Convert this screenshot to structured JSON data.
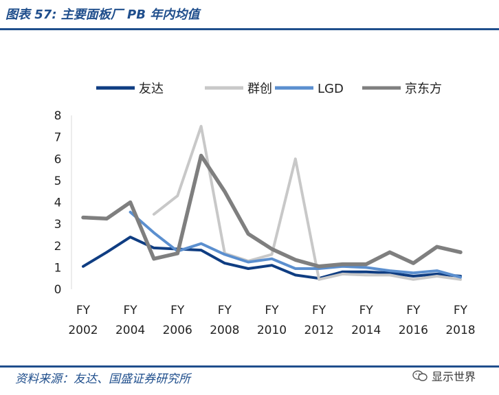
{
  "header": {
    "figure_title": "图表 57: 主要面板厂 PB 年内均值"
  },
  "footer": {
    "source": "资料来源：友达、国盛证券研究所"
  },
  "watermark": {
    "text": "显示世界",
    "icon": "wechat-icon"
  },
  "colors": {
    "accent": "#1f4e8c",
    "auo": "#0f3d82",
    "innolux": "#c8c8c8",
    "lgd": "#5b8fcf",
    "boe": "#7f7f7f"
  },
  "chart_data": {
    "type": "line",
    "title": "",
    "xlabel": "",
    "ylabel": "",
    "ylim": [
      0,
      8
    ],
    "yticks": [
      "0",
      "1",
      "2",
      "3",
      "4",
      "5",
      "6",
      "7",
      "8"
    ],
    "xlim": [
      2002,
      2018
    ],
    "xtick_labels": [
      {
        "top": "FY",
        "bottom": "2002"
      },
      {
        "top": "FY",
        "bottom": "2004"
      },
      {
        "top": "FY",
        "bottom": "2006"
      },
      {
        "top": "FY",
        "bottom": "2008"
      },
      {
        "top": "FY",
        "bottom": "2010"
      },
      {
        "top": "FY",
        "bottom": "2012"
      },
      {
        "top": "FY",
        "bottom": "2014"
      },
      {
        "top": "FY",
        "bottom": "2016"
      },
      {
        "top": "FY",
        "bottom": "2018"
      }
    ],
    "legend_position": "top",
    "series": [
      {
        "name": "友达",
        "color": "#0f3d82",
        "x": [
          2002,
          2003,
          2004,
          2005,
          2006,
          2007,
          2008,
          2009,
          2010,
          2011,
          2012,
          2013,
          2014,
          2015,
          2016,
          2017,
          2018
        ],
        "values": [
          1.05,
          1.7,
          2.4,
          1.9,
          1.85,
          1.8,
          1.2,
          0.95,
          1.1,
          0.65,
          0.5,
          0.8,
          0.8,
          0.75,
          0.6,
          0.7,
          0.6
        ]
      },
      {
        "name": "群创",
        "color": "#c8c8c8",
        "x": [
          2005,
          2006,
          2007,
          2008,
          2009,
          2010,
          2011,
          2012,
          2013,
          2014,
          2015,
          2016,
          2017,
          2018
        ],
        "values": [
          3.45,
          4.3,
          7.5,
          1.65,
          1.3,
          1.6,
          6.0,
          0.45,
          0.7,
          0.65,
          0.65,
          0.45,
          0.6,
          0.45
        ]
      },
      {
        "name": "LGD",
        "color": "#5b8fcf",
        "x": [
          2004,
          2005,
          2006,
          2007,
          2008,
          2009,
          2010,
          2011,
          2012,
          2013,
          2014,
          2015,
          2016,
          2017,
          2018
        ],
        "values": [
          3.55,
          2.6,
          1.75,
          2.1,
          1.6,
          1.25,
          1.4,
          0.95,
          0.95,
          1.05,
          1.0,
          0.85,
          0.75,
          0.85,
          0.55
        ]
      },
      {
        "name": "京东方",
        "color": "#7f7f7f",
        "x": [
          2002,
          2003,
          2004,
          2005,
          2006,
          2007,
          2008,
          2009,
          2010,
          2011,
          2012,
          2013,
          2014,
          2015,
          2016,
          2017,
          2018
        ],
        "values": [
          3.3,
          3.25,
          4.0,
          1.4,
          1.65,
          6.15,
          4.5,
          2.55,
          1.85,
          1.35,
          1.05,
          1.15,
          1.15,
          1.7,
          1.2,
          1.95,
          1.7
        ]
      }
    ]
  }
}
